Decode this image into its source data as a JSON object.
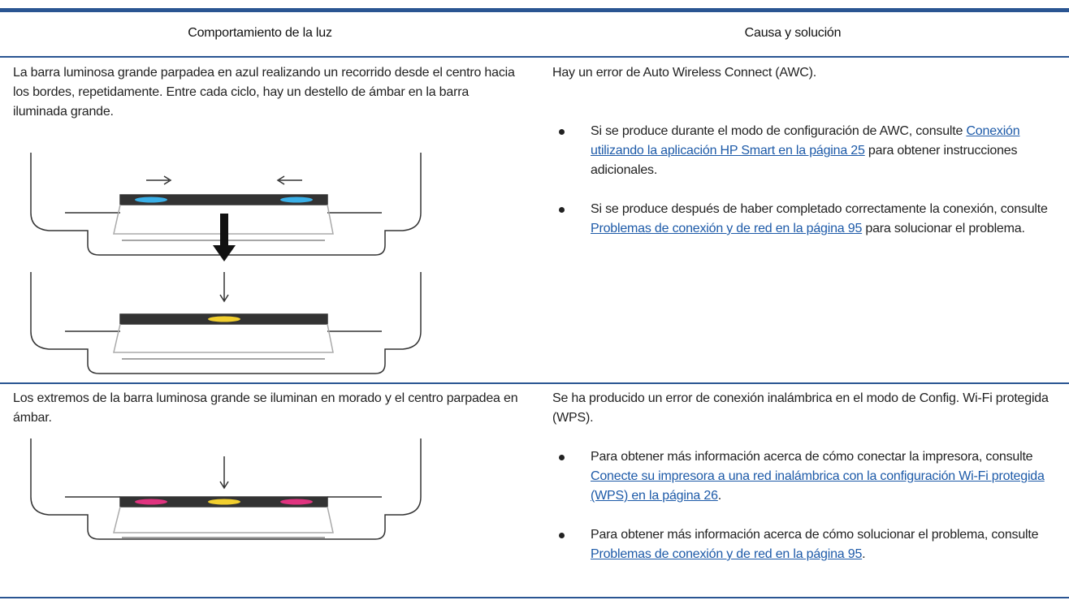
{
  "table": {
    "header": [
      "Comportamiento de la luz",
      "Causa y solución"
    ],
    "rows": [
      {
        "behavior": "La barra luminosa grande parpadea en azul realizando un recorrido desde el centro hacia los bordes, repetidamente. Entre cada ciclo, hay un destello de ámbar en la barra iluminada grande.",
        "cause": "Hay un error de Auto Wireless Connect (AWC).",
        "bullets": [
          {
            "before": "Si se produce durante el modo de configuración de AWC, consulte ",
            "link": "Conexión utilizando la aplicación HP Smart en la página 25",
            "after": " para obtener instrucciones adicionales."
          },
          {
            "before": "Si se produce después de haber completado correctamente la conexión, consulte ",
            "link": "Problemas de conexión y de red en la página 95",
            "after": " para solucionar el problema."
          }
        ]
      },
      {
        "behavior": "Los extremos de la barra luminosa grande se iluminan en morado y el centro parpadea en ámbar.",
        "cause": "Se ha producido un error de conexión inalámbrica en el modo de Config. Wi-Fi protegida (WPS).",
        "bullets": [
          {
            "before": "Para obtener más información acerca de cómo conectar la impresora, consulte ",
            "link": "Conecte su impresora a una red inalámbrica con la configuración Wi-Fi protegida (WPS) en la página 26",
            "after": "."
          },
          {
            "before": "Para obtener más información acerca de cómo solucionar el problema, consulte ",
            "link": "Problemas de conexión y de red en la página 95",
            "after": "."
          }
        ]
      }
    ]
  }
}
